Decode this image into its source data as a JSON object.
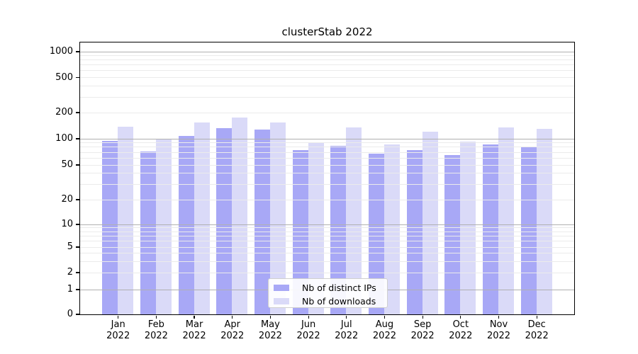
{
  "title": "clusterStab 2022",
  "chart_data": {
    "type": "bar",
    "title": "clusterStab 2022",
    "categories": [
      "Jan 2022",
      "Feb 2022",
      "Mar 2022",
      "Apr 2022",
      "May 2022",
      "Jun 2022",
      "Jul 2022",
      "Aug 2022",
      "Sep 2022",
      "Oct 2022",
      "Nov 2022",
      "Dec 2022"
    ],
    "series": [
      {
        "name": "Nb of distinct IPs",
        "color": "#a8a8f6",
        "values": [
          93,
          71,
          107,
          131,
          127,
          73,
          82,
          67,
          74,
          65,
          85,
          79
        ]
      },
      {
        "name": "Nb of downloads",
        "color": "#dadaf8",
        "values": [
          135,
          100,
          152,
          173,
          153,
          90,
          134,
          85,
          120,
          92,
          134,
          129
        ]
      }
    ],
    "xlabel": "",
    "ylabel": "",
    "yscale": "symlog",
    "yticks": [
      0,
      1,
      2,
      5,
      10,
      20,
      50,
      100,
      200,
      500,
      1000
    ],
    "ylim": [
      0,
      1300
    ],
    "grid": true,
    "legend_position": "lower center"
  },
  "colors": {
    "bar_dark": "#a8a8f6",
    "bar_light": "#dadaf8",
    "grid_minor": "#ebebeb",
    "grid_major": "#b0b0b0"
  }
}
